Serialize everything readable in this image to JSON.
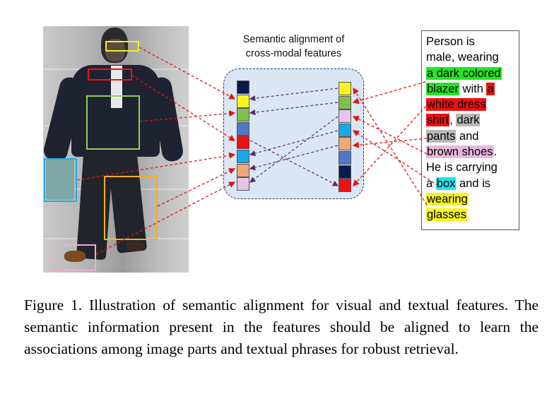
{
  "panel_title_line1": "Semantic alignment of",
  "panel_title_line2": "cross-modal features",
  "description": [
    {
      "text": "Person is",
      "bg": null
    },
    {
      "text": "male, wearing",
      "bg": null
    },
    {
      "text": "a dark colored",
      "bg": "#22e622"
    },
    {
      "text": "blazer",
      "bg": "#22e622",
      "suffix": " with "
    },
    {
      "text": "a",
      "bg": "#ee1111",
      "inline": true
    },
    {
      "text": "white dress",
      "bg": "#ee1111"
    },
    {
      "text": "shirt",
      "bg": "#ee1111",
      "suffix": ", "
    },
    {
      "text": "dark",
      "bg": "#b8b8b8",
      "inline": true
    },
    {
      "text": "pants",
      "bg": "#b8b8b8",
      "suffix": " and"
    },
    {
      "text": "brown shoes",
      "bg": "#e6b8dc",
      "suffix": "."
    },
    {
      "text": "He is carrying",
      "bg": null
    },
    {
      "text": "a ",
      "bg": null,
      "nohl_prefix": true
    },
    {
      "text": "box",
      "bg": "#22e0ee",
      "inline": true,
      "suffix": " and is"
    },
    {
      "text": "wearing",
      "bg": "#f5f520"
    },
    {
      "text": "glasses",
      "bg": "#f5f520"
    }
  ],
  "visual_features": [
    "#0a1a4f",
    "#f5f520",
    "#7fc24b",
    "#4f78c8",
    "#ee1111",
    "#19a8e6",
    "#f0a878",
    "#e6c4e8"
  ],
  "text_features": [
    "#f5f520",
    "#7fc24b",
    "#e6c4e8",
    "#19a8e6",
    "#f0a878",
    "#4f78c8",
    "#0a1a4f",
    "#ee1111"
  ],
  "colors": {
    "glasses_box": "#f0f020",
    "shirt_box": "#ee1111",
    "blazer_box": "#8fd060",
    "box_box": "#2aa8e6",
    "pants_box": "#f0b020",
    "shoes_box": "#e6b0d0",
    "arrow_red": "#e01515",
    "arrow_purple": "#5a2a6a"
  },
  "caption": "Figure 1. Illustration of semantic alignment for visual and textual features. The semantic information present in the features should be aligned to learn the associations among image parts and textual phrases for robust retrieval."
}
